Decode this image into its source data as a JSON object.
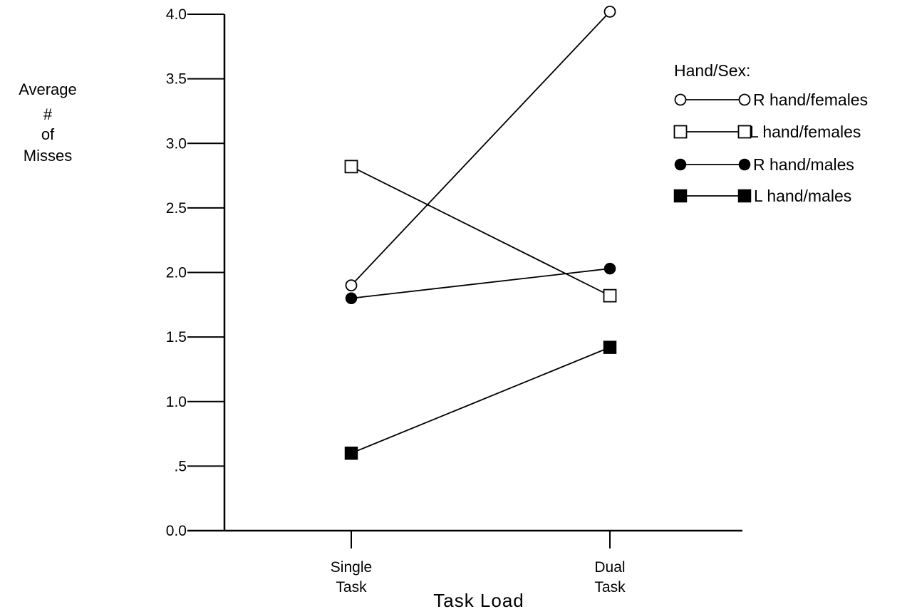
{
  "chart_data": {
    "type": "line",
    "title": "",
    "xlabel": "Task Load",
    "ylabel_lines": [
      "Average",
      "#",
      "of",
      "Misses"
    ],
    "categories": [
      {
        "lines": [
          "Single",
          "Task"
        ]
      },
      {
        "lines": [
          "Dual",
          "Task"
        ]
      }
    ],
    "ylim": [
      0,
      4.0
    ],
    "yticks": [
      {
        "value": 0.0,
        "label": "0.0"
      },
      {
        "value": 0.5,
        "label": ".5"
      },
      {
        "value": 1.0,
        "label": "1.0"
      },
      {
        "value": 1.5,
        "label": "1.5"
      },
      {
        "value": 2.0,
        "label": "2.0"
      },
      {
        "value": 2.5,
        "label": "2.5"
      },
      {
        "value": 3.0,
        "label": "3.0"
      },
      {
        "value": 3.5,
        "label": "3.5"
      },
      {
        "value": 4.0,
        "label": "4.0"
      }
    ],
    "grid": false,
    "legend": {
      "title": "Hand/Sex:",
      "placement": "right"
    },
    "series": [
      {
        "name": "R hand/females",
        "marker": "circle-open",
        "values": [
          1.9,
          4.02
        ]
      },
      {
        "name": "L hand/females",
        "marker": "square-open",
        "values": [
          2.82,
          1.82
        ]
      },
      {
        "name": "R hand/males",
        "marker": "circle-filled",
        "values": [
          1.8,
          2.03
        ]
      },
      {
        "name": "L hand/males",
        "marker": "square-filled",
        "values": [
          0.6,
          1.42
        ]
      }
    ]
  }
}
